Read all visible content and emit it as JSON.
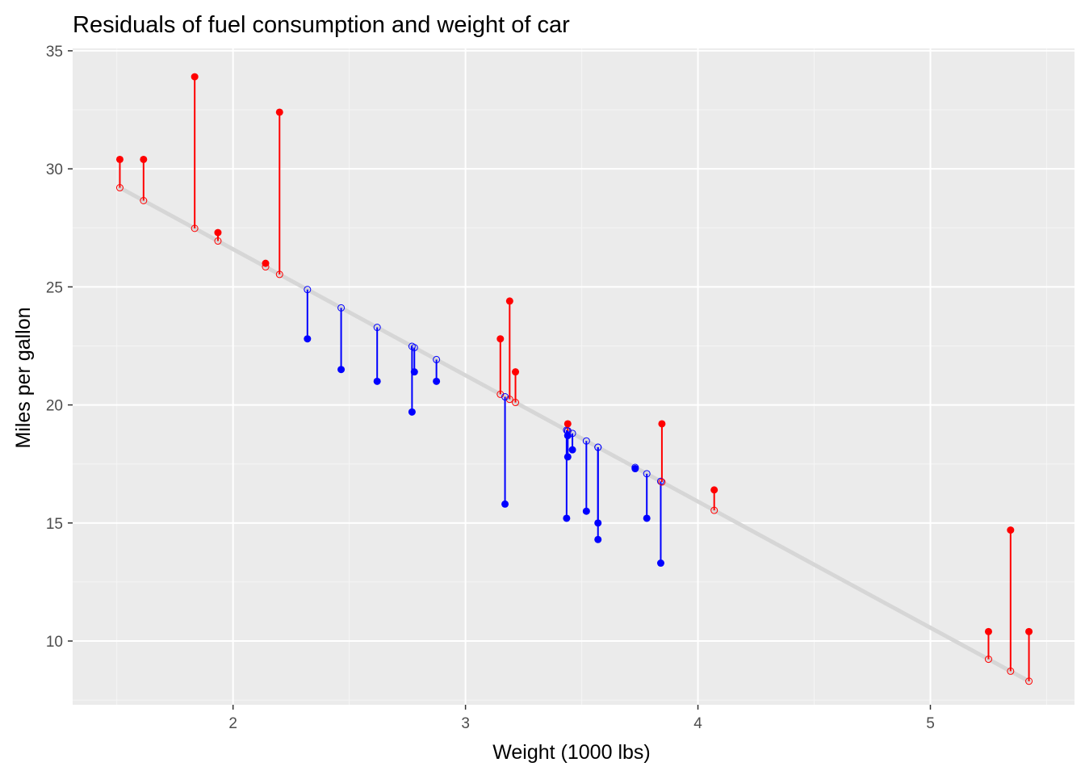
{
  "chart_data": {
    "type": "scatter",
    "title": "Residuals of fuel consumption and weight of car",
    "xlabel": "Weight (1000 lbs)",
    "ylabel": "Miles per gallon",
    "xlim": [
      1.31,
      5.62
    ],
    "ylim": [
      7.3,
      35.1
    ],
    "xticks": [
      2,
      3,
      4,
      5
    ],
    "yticks": [
      10,
      15,
      20,
      25,
      30,
      35
    ],
    "grid": true,
    "legend": "none",
    "regression": {
      "intercept": 37.285,
      "slope": -5.344
    },
    "colors": {
      "panel": "#ebebeb",
      "grid_major": "#ffffff",
      "grid_minor": "#f5f5f5",
      "positive_residual": "#ff0000",
      "negative_residual": "#0000ff",
      "fit_line": "#d6d6d6",
      "tick": "#333333"
    },
    "series": [
      {
        "wt": [
          2.62,
          2.875,
          2.32,
          3.215,
          3.44,
          3.46,
          3.57,
          3.19,
          3.15,
          3.44,
          3.44,
          4.07,
          3.73,
          3.78,
          5.25,
          5.424,
          5.345,
          2.2,
          1.615,
          1.835,
          2.465,
          3.52,
          3.435,
          3.84,
          3.845,
          1.935,
          2.14,
          1.513,
          3.17,
          2.77,
          3.57,
          2.78
        ],
        "mpg": [
          21.0,
          21.0,
          22.8,
          21.4,
          18.7,
          18.1,
          14.3,
          24.4,
          22.8,
          19.2,
          17.8,
          16.4,
          17.3,
          15.2,
          10.4,
          10.4,
          14.7,
          32.4,
          30.4,
          33.9,
          21.5,
          15.5,
          15.2,
          13.3,
          19.2,
          27.3,
          26.0,
          30.4,
          15.8,
          19.7,
          15.0,
          21.4
        ]
      }
    ]
  }
}
